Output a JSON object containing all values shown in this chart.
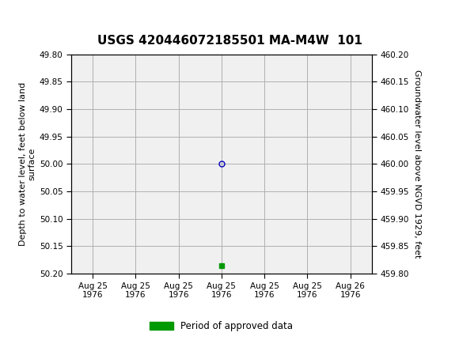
{
  "title": "USGS 420446072185501 MA-M4W  101",
  "left_ylabel": "Depth to water level, feet below land\nsurface",
  "right_ylabel": "Groundwater level above NGVD 1929, feet",
  "ylim_left_top": 49.8,
  "ylim_left_bottom": 50.2,
  "ylim_right_top": 460.2,
  "ylim_right_bottom": 459.8,
  "yticks_left": [
    49.8,
    49.85,
    49.9,
    49.95,
    50.0,
    50.05,
    50.1,
    50.15,
    50.2
  ],
  "yticks_right": [
    460.2,
    460.15,
    460.1,
    460.05,
    460.0,
    459.95,
    459.9,
    459.85,
    459.8
  ],
  "data_point_x": 3,
  "data_point_y": 50.0,
  "data_point_color": "#0000bb",
  "data_point_marker": "o",
  "data_point_size": 5,
  "green_marker_x": 3,
  "green_marker_y": 50.185,
  "green_marker_color": "#009900",
  "green_marker_size": 4,
  "header_bg_color": "#006633",
  "grid_color": "#b0b0b0",
  "plot_bg_color": "#f0f0f0",
  "legend_label": "Period of approved data",
  "legend_color": "#009900",
  "font_color": "#000000",
  "title_fontsize": 11,
  "axis_label_fontsize": 8,
  "tick_fontsize": 7.5,
  "xlabel_tick_labels": [
    "Aug 25\n1976",
    "Aug 25\n1976",
    "Aug 25\n1976",
    "Aug 25\n1976",
    "Aug 25\n1976",
    "Aug 25\n1976",
    "Aug 26\n1976"
  ],
  "xtick_positions": [
    0,
    1,
    2,
    3,
    4,
    5,
    6
  ],
  "xlim": [
    -0.5,
    6.5
  ]
}
